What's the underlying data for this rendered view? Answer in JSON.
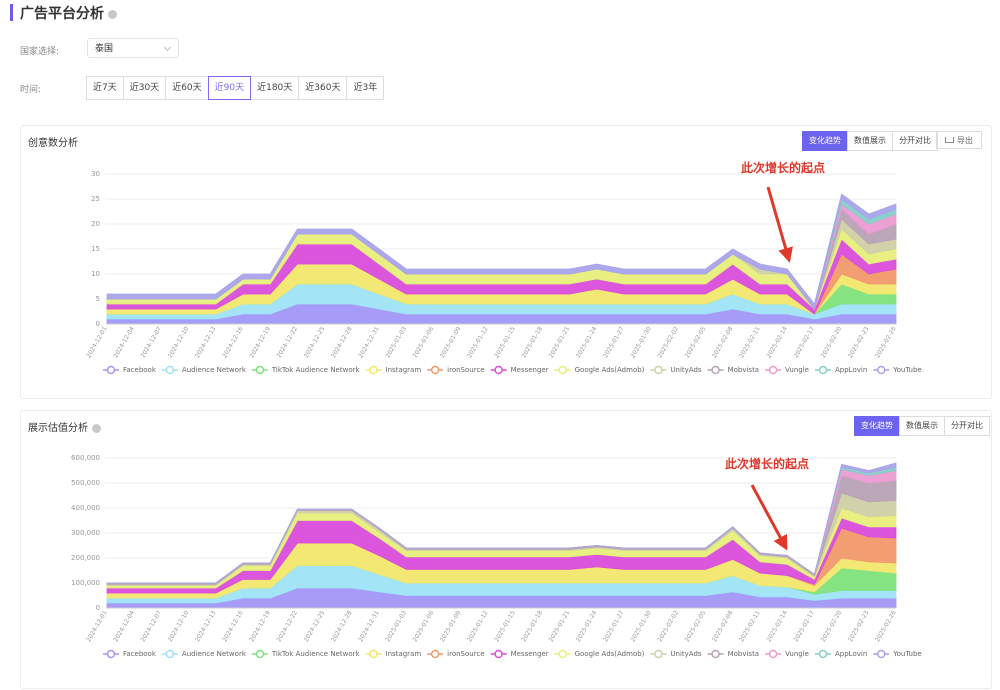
{
  "header": {
    "title": "广告平台分析"
  },
  "filters": {
    "country_label": "国家选择:",
    "country": "泰国",
    "time_label": "时间:",
    "time_options": [
      "近7天",
      "近30天",
      "近60天",
      "近90天",
      "近180天",
      "近360天",
      "近3年"
    ]
  },
  "panels": [
    {
      "view_options": [
        "变化趋势",
        "数值展示",
        "分开对比"
      ],
      "export": "导出"
    },
    {
      "view_options": [
        "变化趋势",
        "数值展示",
        "分开对比"
      ]
    }
  ],
  "chart_data": [
    {
      "type": "stacked-area",
      "title": "创意数分析",
      "annotation": "此次增长的起点",
      "grid": true,
      "categories": [
        "2024-12-01",
        "2024-12-04",
        "2024-12-07",
        "2024-12-10",
        "2024-12-13",
        "2024-12-16",
        "2024-12-19",
        "2024-12-22",
        "2024-12-25",
        "2024-12-28",
        "2024-12-31",
        "2025-01-03",
        "2025-01-06",
        "2025-01-09",
        "2025-01-12",
        "2025-01-15",
        "2025-01-18",
        "2025-01-21",
        "2025-01-24",
        "2025-01-27",
        "2025-01-30",
        "2025-02-02",
        "2025-02-05",
        "2025-02-08",
        "2025-02-11",
        "2025-02-14",
        "2025-02-17",
        "2025-02-20",
        "2025-02-23",
        "2025-02-26"
      ],
      "ylim": [
        0,
        30
      ],
      "yticks": [
        0,
        5,
        10,
        15,
        20,
        25,
        30
      ],
      "series": [
        {
          "name": "Facebook",
          "color": "#a197f7",
          "values": [
            1,
            1,
            1,
            1,
            1,
            2,
            2,
            4,
            4,
            4,
            3,
            2,
            2,
            2,
            2,
            2,
            2,
            2,
            2,
            2,
            2,
            2,
            2,
            3,
            2,
            2,
            1,
            2,
            2,
            2
          ]
        },
        {
          "name": "Audience Network",
          "color": "#9fe3f7",
          "values": [
            1,
            1,
            1,
            1,
            1,
            2,
            2,
            4,
            4,
            4,
            3,
            2,
            2,
            2,
            2,
            2,
            2,
            2,
            2,
            2,
            2,
            2,
            2,
            3,
            2,
            2,
            1,
            2,
            2,
            2
          ]
        },
        {
          "name": "TikTok Audience Network",
          "color": "#7ee37a",
          "values": [
            0,
            0,
            0,
            0,
            0,
            0,
            0,
            0,
            0,
            0,
            0,
            0,
            0,
            0,
            0,
            0,
            0,
            0,
            0,
            0,
            0,
            0,
            0,
            0,
            0,
            0,
            0,
            4,
            2,
            2
          ]
        },
        {
          "name": "Instagram",
          "color": "#f3e76e",
          "values": [
            1,
            1,
            1,
            1,
            1,
            2,
            2,
            4,
            4,
            4,
            3,
            2,
            2,
            2,
            2,
            2,
            2,
            2,
            3,
            2,
            2,
            2,
            2,
            3,
            2,
            2,
            0,
            2,
            2,
            2
          ]
        },
        {
          "name": "ironSource",
          "color": "#f2996a",
          "values": [
            0,
            0,
            0,
            0,
            0,
            0,
            0,
            0,
            0,
            0,
            0,
            0,
            0,
            0,
            0,
            0,
            0,
            0,
            0,
            0,
            0,
            0,
            0,
            0,
            0,
            0,
            0,
            4,
            2,
            3
          ]
        },
        {
          "name": "Messenger",
          "color": "#d94ddb",
          "values": [
            1,
            1,
            1,
            1,
            1,
            2,
            2,
            4,
            4,
            4,
            3,
            2,
            2,
            2,
            2,
            2,
            2,
            2,
            2,
            2,
            2,
            2,
            2,
            3,
            2,
            2,
            1,
            3,
            2,
            2
          ]
        },
        {
          "name": "Google Ads(Admob)",
          "color": "#e6ef7a",
          "values": [
            1,
            1,
            1,
            1,
            1,
            1,
            1,
            2,
            2,
            2,
            2,
            2,
            2,
            2,
            2,
            2,
            2,
            2,
            2,
            2,
            2,
            2,
            2,
            2,
            2,
            2,
            0,
            2,
            2,
            2
          ]
        },
        {
          "name": "UnityAds",
          "color": "#cfd0a5",
          "values": [
            0,
            0,
            0,
            0,
            0,
            0,
            0,
            0,
            0,
            0,
            0,
            0,
            0,
            0,
            0,
            0,
            0,
            0,
            0,
            0,
            0,
            0,
            0,
            0,
            1,
            0,
            0,
            2,
            2,
            2
          ]
        },
        {
          "name": "Mobvista",
          "color": "#b8a2b6",
          "values": [
            0,
            0,
            0,
            0,
            0,
            0,
            0,
            0,
            0,
            0,
            0,
            0,
            0,
            0,
            0,
            0,
            0,
            0,
            0,
            0,
            0,
            0,
            0,
            0,
            0,
            0,
            0,
            2,
            2,
            3
          ]
        },
        {
          "name": "Vungle",
          "color": "#ec9bd2",
          "values": [
            0,
            0,
            0,
            0,
            0,
            0,
            0,
            0,
            0,
            0,
            0,
            0,
            0,
            0,
            0,
            0,
            0,
            0,
            0,
            0,
            0,
            0,
            0,
            0,
            0,
            0,
            0,
            1,
            2,
            2
          ]
        },
        {
          "name": "AppLovin",
          "color": "#86cdc9",
          "values": [
            0,
            0,
            0,
            0,
            0,
            0,
            0,
            0,
            0,
            0,
            0,
            0,
            0,
            0,
            0,
            0,
            0,
            0,
            0,
            0,
            0,
            0,
            0,
            0,
            0,
            0,
            0,
            1,
            1,
            1
          ]
        },
        {
          "name": "YouTube",
          "color": "#a9a3ea",
          "values": [
            1,
            1,
            1,
            1,
            1,
            1,
            1,
            1,
            1,
            1,
            1,
            1,
            1,
            1,
            1,
            1,
            1,
            1,
            1,
            1,
            1,
            1,
            1,
            1,
            1,
            1,
            1,
            1,
            1,
            1
          ]
        }
      ]
    },
    {
      "type": "stacked-area",
      "title": "展示估值分析",
      "annotation": "此次增长的起点",
      "grid": true,
      "categories": [
        "2024-12-01",
        "2024-12-04",
        "2024-12-07",
        "2024-12-10",
        "2024-12-13",
        "2024-12-16",
        "2024-12-19",
        "2024-12-22",
        "2024-12-25",
        "2024-12-28",
        "2024-12-31",
        "2025-01-03",
        "2025-01-06",
        "2025-01-09",
        "2025-01-12",
        "2025-01-15",
        "2025-01-18",
        "2025-01-21",
        "2025-01-24",
        "2025-01-27",
        "2025-01-30",
        "2025-02-02",
        "2025-02-05",
        "2025-02-08",
        "2025-02-11",
        "2025-02-14",
        "2025-02-17",
        "2025-02-20",
        "2025-02-23",
        "2025-02-26"
      ],
      "ylim": [
        0,
        600000
      ],
      "yticks": [
        0,
        {
          "value": 100000,
          "label": "100,000"
        },
        {
          "value": 200000,
          "label": "200,000"
        },
        {
          "value": 300000,
          "label": "300,000"
        },
        {
          "value": 400000,
          "label": "400,000"
        },
        {
          "value": 500000,
          "label": "500,000"
        },
        {
          "value": 600000,
          "label": "600,000"
        }
      ],
      "series": [
        {
          "name": "Facebook",
          "color": "#a197f7",
          "values": [
            20000,
            20000,
            20000,
            20000,
            20000,
            40000,
            40000,
            80000,
            80000,
            80000,
            65000,
            50000,
            50000,
            50000,
            50000,
            50000,
            50000,
            50000,
            50000,
            50000,
            50000,
            50000,
            50000,
            65000,
            45000,
            45000,
            30000,
            40000,
            40000,
            40000
          ]
        },
        {
          "name": "Audience Network",
          "color": "#9fe3f7",
          "values": [
            20000,
            20000,
            20000,
            20000,
            20000,
            40000,
            40000,
            90000,
            90000,
            90000,
            70000,
            50000,
            50000,
            50000,
            50000,
            50000,
            50000,
            50000,
            50000,
            50000,
            50000,
            50000,
            50000,
            65000,
            45000,
            40000,
            25000,
            30000,
            30000,
            30000
          ]
        },
        {
          "name": "TikTok Audience Network",
          "color": "#7ee37a",
          "values": [
            0,
            0,
            0,
            0,
            0,
            0,
            0,
            0,
            0,
            0,
            0,
            0,
            0,
            0,
            0,
            0,
            0,
            0,
            0,
            0,
            0,
            0,
            0,
            0,
            0,
            0,
            10000,
            90000,
            80000,
            70000
          ]
        },
        {
          "name": "Instagram",
          "color": "#f3e76e",
          "values": [
            20000,
            20000,
            20000,
            20000,
            20000,
            35000,
            35000,
            90000,
            90000,
            90000,
            75000,
            55000,
            55000,
            55000,
            55000,
            55000,
            55000,
            55000,
            65000,
            55000,
            55000,
            55000,
            55000,
            65000,
            50000,
            45000,
            25000,
            40000,
            35000,
            40000
          ]
        },
        {
          "name": "ironSource",
          "color": "#f2996a",
          "values": [
            0,
            0,
            0,
            0,
            0,
            0,
            0,
            0,
            0,
            0,
            0,
            0,
            0,
            0,
            0,
            0,
            0,
            0,
            0,
            0,
            0,
            0,
            0,
            0,
            0,
            0,
            5000,
            120000,
            100000,
            100000
          ]
        },
        {
          "name": "Messenger",
          "color": "#d94ddb",
          "values": [
            20000,
            20000,
            20000,
            20000,
            20000,
            35000,
            35000,
            90000,
            90000,
            90000,
            70000,
            50000,
            50000,
            50000,
            50000,
            50000,
            50000,
            50000,
            50000,
            50000,
            50000,
            50000,
            50000,
            80000,
            45000,
            45000,
            20000,
            40000,
            40000,
            45000
          ]
        },
        {
          "name": "Google Ads(Admob)",
          "color": "#e6ef7a",
          "values": [
            10000,
            10000,
            10000,
            10000,
            10000,
            20000,
            20000,
            30000,
            30000,
            30000,
            25000,
            25000,
            25000,
            25000,
            25000,
            25000,
            25000,
            25000,
            25000,
            25000,
            25000,
            25000,
            25000,
            35000,
            25000,
            25000,
            10000,
            40000,
            40000,
            45000
          ]
        },
        {
          "name": "UnityAds",
          "color": "#cfd0a5",
          "values": [
            5000,
            5000,
            5000,
            5000,
            5000,
            5000,
            5000,
            10000,
            10000,
            10000,
            10000,
            5000,
            5000,
            5000,
            5000,
            5000,
            5000,
            5000,
            5000,
            5000,
            5000,
            5000,
            5000,
            10000,
            5000,
            5000,
            5000,
            60000,
            60000,
            60000
          ]
        },
        {
          "name": "Mobvista",
          "color": "#b8a2b6",
          "values": [
            5000,
            5000,
            5000,
            5000,
            5000,
            5000,
            5000,
            5000,
            5000,
            5000,
            5000,
            5000,
            5000,
            5000,
            5000,
            5000,
            5000,
            5000,
            5000,
            5000,
            5000,
            5000,
            5000,
            5000,
            5000,
            5000,
            5000,
            70000,
            75000,
            80000
          ]
        },
        {
          "name": "Vungle",
          "color": "#ec9bd2",
          "values": [
            0,
            0,
            0,
            0,
            0,
            0,
            0,
            0,
            0,
            0,
            0,
            0,
            0,
            0,
            0,
            0,
            0,
            0,
            0,
            0,
            0,
            0,
            0,
            0,
            0,
            0,
            0,
            25000,
            30000,
            40000
          ]
        },
        {
          "name": "AppLovin",
          "color": "#86cdc9",
          "values": [
            0,
            0,
            0,
            0,
            0,
            0,
            0,
            0,
            0,
            0,
            0,
            0,
            0,
            0,
            0,
            0,
            0,
            0,
            0,
            0,
            0,
            0,
            0,
            0,
            0,
            0,
            0,
            10000,
            10000,
            15000
          ]
        },
        {
          "name": "YouTube",
          "color": "#a9a3ea",
          "values": [
            0,
            0,
            0,
            0,
            0,
            0,
            0,
            0,
            0,
            0,
            0,
            0,
            0,
            0,
            0,
            0,
            0,
            0,
            0,
            0,
            0,
            0,
            0,
            0,
            0,
            0,
            0,
            10000,
            10000,
            15000
          ]
        }
      ]
    }
  ]
}
